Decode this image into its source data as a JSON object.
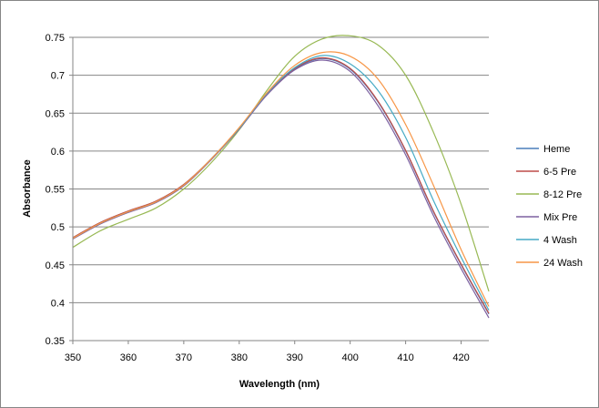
{
  "chart_data": {
    "type": "line",
    "title": "",
    "xlabel": "Wavelength (nm)",
    "ylabel": "Absorbance",
    "xlim": [
      350,
      425
    ],
    "ylim": [
      0.35,
      0.75
    ],
    "xticks": [
      "350",
      "360",
      "370",
      "380",
      "390",
      "400",
      "410",
      "420"
    ],
    "yticks": [
      "0.35",
      "0.4",
      "0.45",
      "0.5",
      "0.55",
      "0.6",
      "0.65",
      "0.7",
      "0.75"
    ],
    "grid": "horizontal",
    "legend_position": "right",
    "x": [
      350,
      355,
      360,
      365,
      370,
      375,
      380,
      385,
      390,
      395,
      400,
      405,
      410,
      415,
      420,
      425
    ],
    "series": [
      {
        "name": "Heme",
        "color": "#4a7ebb",
        "values": [
          0.485,
          0.505,
          0.52,
          0.533,
          0.555,
          0.59,
          0.63,
          0.675,
          0.708,
          0.722,
          0.708,
          0.665,
          0.6,
          0.52,
          0.45,
          0.385
        ]
      },
      {
        "name": "6-5 Pre",
        "color": "#be4b48",
        "values": [
          0.486,
          0.506,
          0.521,
          0.534,
          0.556,
          0.59,
          0.63,
          0.675,
          0.709,
          0.723,
          0.709,
          0.666,
          0.601,
          0.521,
          0.451,
          0.386
        ]
      },
      {
        "name": "8-12 Pre",
        "color": "#98b954",
        "values": [
          0.473,
          0.495,
          0.51,
          0.525,
          0.55,
          0.585,
          0.628,
          0.68,
          0.725,
          0.748,
          0.752,
          0.74,
          0.7,
          0.625,
          0.53,
          0.415
        ]
      },
      {
        "name": "Mix Pre",
        "color": "#7d60a0",
        "values": [
          0.484,
          0.504,
          0.519,
          0.532,
          0.554,
          0.589,
          0.629,
          0.674,
          0.707,
          0.72,
          0.705,
          0.66,
          0.595,
          0.515,
          0.445,
          0.38
        ]
      },
      {
        "name": "4 Wash",
        "color": "#46aac5",
        "values": [
          0.485,
          0.505,
          0.52,
          0.533,
          0.555,
          0.59,
          0.63,
          0.676,
          0.71,
          0.726,
          0.715,
          0.68,
          0.618,
          0.535,
          0.46,
          0.39
        ]
      },
      {
        "name": "24 Wash",
        "color": "#f79646",
        "values": [
          0.485,
          0.505,
          0.52,
          0.533,
          0.555,
          0.59,
          0.631,
          0.677,
          0.713,
          0.73,
          0.725,
          0.695,
          0.635,
          0.555,
          0.47,
          0.395
        ]
      }
    ]
  }
}
